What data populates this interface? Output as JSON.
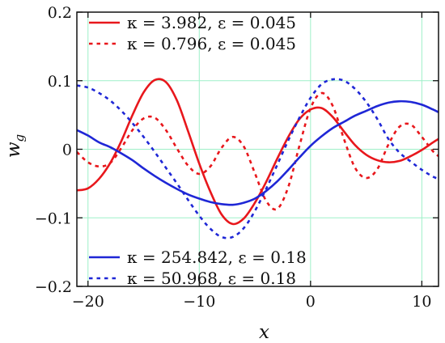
{
  "chart_data": {
    "type": "line",
    "xlabel": "x",
    "ylabel": "w",
    "ylabel_sub": "g",
    "xlim": [
      -21,
      11.5
    ],
    "ylim": [
      -0.2,
      0.2
    ],
    "xticks": [
      -20,
      -10,
      0,
      10
    ],
    "xtick_labels": [
      "−20",
      "−10",
      "0",
      "10"
    ],
    "yticks": [
      -0.2,
      -0.1,
      0,
      0.1,
      0.2
    ],
    "ytick_labels": [
      "−0.2",
      "−0.1",
      "0",
      "0.1",
      "0.2"
    ],
    "grid": true,
    "grid_color": "#9ef0c8",
    "legends": [
      {
        "placement": "top-left",
        "entries": [
          0,
          1
        ]
      },
      {
        "placement": "bottom-left",
        "entries": [
          2,
          3
        ]
      }
    ],
    "series": [
      {
        "name": "κ = 3.982, ε = 0.045",
        "color": "#e8171c",
        "style": "solid",
        "x": [
          -21,
          -20,
          -19,
          -18,
          -17,
          -16,
          -15,
          -14,
          -13,
          -12,
          -11,
          -10,
          -9,
          -8,
          -7,
          -6,
          -5,
          -4,
          -3,
          -2,
          -1,
          0,
          1,
          2,
          3,
          4,
          5,
          6,
          7,
          8,
          9,
          10,
          11,
          11.5
        ],
        "y": [
          -0.06,
          -0.057,
          -0.043,
          -0.02,
          0.012,
          0.05,
          0.083,
          0.101,
          0.098,
          0.071,
          0.026,
          -0.021,
          -0.062,
          -0.095,
          -0.109,
          -0.101,
          -0.078,
          -0.048,
          -0.014,
          0.018,
          0.044,
          0.058,
          0.06,
          0.047,
          0.026,
          0.006,
          -0.008,
          -0.016,
          -0.019,
          -0.017,
          -0.01,
          -0.001,
          0.01,
          0.015
        ]
      },
      {
        "name": "κ = 0.796, ε = 0.045",
        "color": "#e8171c",
        "style": "dotted",
        "x": [
          -21,
          -20,
          -19,
          -18,
          -17,
          -16,
          -15,
          -14,
          -13,
          -12,
          -11,
          -10,
          -9,
          -8,
          -7,
          -6,
          -5,
          -4,
          -3,
          -2,
          -1,
          0,
          1,
          2,
          3,
          4,
          5,
          6,
          7,
          8,
          9,
          10,
          11,
          11.5
        ],
        "y": [
          -0.004,
          -0.019,
          -0.025,
          -0.02,
          0.002,
          0.028,
          0.045,
          0.046,
          0.028,
          0.001,
          -0.024,
          -0.036,
          -0.025,
          0.002,
          0.018,
          0.004,
          -0.035,
          -0.075,
          -0.087,
          -0.055,
          0.005,
          0.06,
          0.082,
          0.063,
          0.015,
          -0.027,
          -0.042,
          -0.029,
          0.007,
          0.033,
          0.036,
          0.018,
          -0.003,
          -0.01
        ]
      },
      {
        "name": "κ = 254.842, ε = 0.18",
        "color": "#1f27d6",
        "style": "solid",
        "x": [
          -21,
          -20,
          -19,
          -18,
          -17,
          -16,
          -15,
          -14,
          -13,
          -12,
          -11,
          -10,
          -9,
          -8,
          -7,
          -6,
          -5,
          -4,
          -3,
          -2,
          -1,
          0,
          1,
          2,
          3,
          4,
          5,
          6,
          7,
          8,
          9,
          10,
          11,
          11.5
        ],
        "y": [
          0.028,
          0.02,
          0.01,
          0.003,
          -0.006,
          -0.016,
          -0.028,
          -0.039,
          -0.049,
          -0.058,
          -0.066,
          -0.072,
          -0.077,
          -0.08,
          -0.081,
          -0.078,
          -0.072,
          -0.061,
          -0.047,
          -0.03,
          -0.012,
          0.005,
          0.019,
          0.031,
          0.04,
          0.049,
          0.056,
          0.063,
          0.068,
          0.07,
          0.069,
          0.065,
          0.058,
          0.054
        ]
      },
      {
        "name": "κ = 50.968, ε = 0.18",
        "color": "#1f27d6",
        "style": "dotted",
        "x": [
          -21,
          -20,
          -19,
          -18,
          -17,
          -16,
          -15,
          -14,
          -13,
          -12,
          -11,
          -10,
          -9,
          -8,
          -7,
          -6,
          -5,
          -4,
          -3,
          -2,
          -1,
          0,
          1,
          2,
          3,
          4,
          5,
          6,
          7,
          8,
          9,
          10,
          11,
          11.5
        ],
        "y": [
          0.093,
          0.09,
          0.082,
          0.071,
          0.056,
          0.038,
          0.018,
          -0.004,
          -0.027,
          -0.05,
          -0.074,
          -0.097,
          -0.116,
          -0.128,
          -0.128,
          -0.115,
          -0.09,
          -0.058,
          -0.023,
          0.013,
          0.046,
          0.075,
          0.095,
          0.102,
          0.1,
          0.088,
          0.069,
          0.044,
          0.015,
          -0.005,
          -0.018,
          -0.03,
          -0.04,
          -0.043
        ]
      }
    ]
  }
}
